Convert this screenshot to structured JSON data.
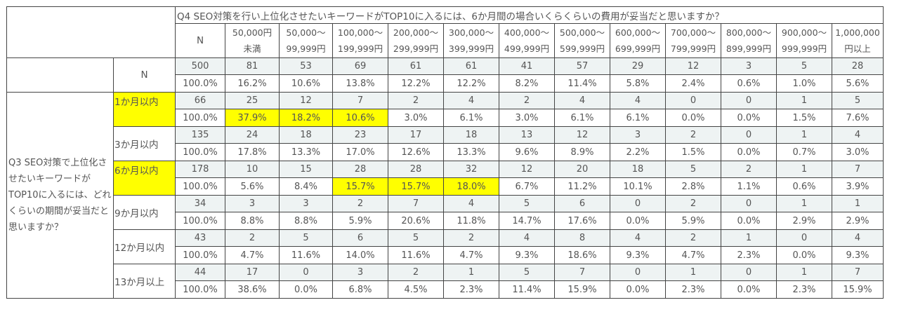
{
  "chart_data": {
    "type": "table",
    "col_question": "Q4 SEO対策を行い上位化させたいキーワードがTOP10に入るには、6か月間の場合いくらくらいの費用が妥当だと思いますか？",
    "row_question": "Q3 SEO対策で上位化させたいキーワードがTOP10に入るには、どれくらいの期間が妥当だと思いますか？",
    "n_label": "N",
    "columns": [
      {
        "line1": "50,000円",
        "line2": "未満"
      },
      {
        "line1": "50,000～",
        "line2": "99,999円"
      },
      {
        "line1": "100,000～",
        "line2": "199,999円"
      },
      {
        "line1": "200,000～",
        "line2": "299,999円"
      },
      {
        "line1": "300,000～",
        "line2": "399,999円"
      },
      {
        "line1": "400,000～",
        "line2": "499,999円"
      },
      {
        "line1": "500,000～",
        "line2": "599,999円"
      },
      {
        "line1": "600,000～",
        "line2": "699,999円"
      },
      {
        "line1": "700,000～",
        "line2": "799,999円"
      },
      {
        "line1": "800,000～",
        "line2": "899,999円"
      },
      {
        "line1": "900,000～",
        "line2": "999,999円"
      },
      {
        "line1": "1,000,000",
        "line2": "円以上"
      }
    ],
    "total": {
      "label": "N",
      "n": "500",
      "n_pct": "100.0%",
      "counts": [
        "81",
        "53",
        "69",
        "61",
        "61",
        "41",
        "57",
        "29",
        "12",
        "3",
        "5",
        "28"
      ],
      "pcts": [
        "16.2%",
        "10.6%",
        "13.8%",
        "12.2%",
        "12.2%",
        "8.2%",
        "11.4%",
        "5.8%",
        "2.4%",
        "0.6%",
        "1.0%",
        "5.6%"
      ]
    },
    "rows": [
      {
        "label": "1か月以内",
        "highlight_label": true,
        "n": "66",
        "n_pct": "100.0%",
        "counts": [
          "25",
          "12",
          "7",
          "2",
          "4",
          "2",
          "4",
          "4",
          "0",
          "0",
          "1",
          "5"
        ],
        "pcts": [
          "37.9%",
          "18.2%",
          "10.6%",
          "3.0%",
          "6.1%",
          "3.0%",
          "6.1%",
          "6.1%",
          "0.0%",
          "0.0%",
          "1.5%",
          "7.6%"
        ],
        "highlight_cols": [
          0,
          1,
          2
        ]
      },
      {
        "label": "3か月以内",
        "highlight_label": false,
        "n": "135",
        "n_pct": "100.0%",
        "counts": [
          "24",
          "18",
          "23",
          "17",
          "18",
          "13",
          "12",
          "3",
          "2",
          "0",
          "1",
          "4"
        ],
        "pcts": [
          "17.8%",
          "13.3%",
          "17.0%",
          "12.6%",
          "13.3%",
          "9.6%",
          "8.9%",
          "2.2%",
          "1.5%",
          "0.0%",
          "0.7%",
          "3.0%"
        ],
        "highlight_cols": []
      },
      {
        "label": "6か月以内",
        "highlight_label": true,
        "n": "178",
        "n_pct": "100.0%",
        "counts": [
          "10",
          "15",
          "28",
          "28",
          "32",
          "12",
          "20",
          "18",
          "5",
          "2",
          "1",
          "7"
        ],
        "pcts": [
          "5.6%",
          "8.4%",
          "15.7%",
          "15.7%",
          "18.0%",
          "6.7%",
          "11.2%",
          "10.1%",
          "2.8%",
          "1.1%",
          "0.6%",
          "3.9%"
        ],
        "highlight_cols": [
          2,
          3,
          4
        ]
      },
      {
        "label": "9か月以内",
        "highlight_label": false,
        "n": "34",
        "n_pct": "100.0%",
        "counts": [
          "3",
          "3",
          "2",
          "7",
          "4",
          "5",
          "6",
          "0",
          "2",
          "0",
          "1",
          "1"
        ],
        "pcts": [
          "8.8%",
          "8.8%",
          "5.9%",
          "20.6%",
          "11.8%",
          "14.7%",
          "17.6%",
          "0.0%",
          "5.9%",
          "0.0%",
          "2.9%",
          "2.9%"
        ],
        "highlight_cols": []
      },
      {
        "label": "12か月以内",
        "highlight_label": false,
        "n": "43",
        "n_pct": "100.0%",
        "counts": [
          "2",
          "5",
          "6",
          "5",
          "2",
          "4",
          "8",
          "4",
          "2",
          "1",
          "0",
          "4"
        ],
        "pcts": [
          "4.7%",
          "11.6%",
          "14.0%",
          "11.6%",
          "4.7%",
          "9.3%",
          "18.6%",
          "9.3%",
          "4.7%",
          "2.3%",
          "0.0%",
          "9.3%"
        ],
        "highlight_cols": []
      },
      {
        "label": "13か月以上",
        "highlight_label": false,
        "n": "44",
        "n_pct": "100.0%",
        "counts": [
          "17",
          "0",
          "3",
          "2",
          "1",
          "5",
          "7",
          "0",
          "1",
          "0",
          "1",
          "7"
        ],
        "pcts": [
          "38.6%",
          "0.0%",
          "6.8%",
          "4.5%",
          "2.3%",
          "11.4%",
          "15.9%",
          "0.0%",
          "2.3%",
          "0.0%",
          "2.3%",
          "15.9%"
        ],
        "highlight_cols": []
      }
    ]
  },
  "colors": {
    "highlight": "#ffff00",
    "count_row_bg": "#eef3f3",
    "border": "#444444",
    "text": "#555555"
  }
}
